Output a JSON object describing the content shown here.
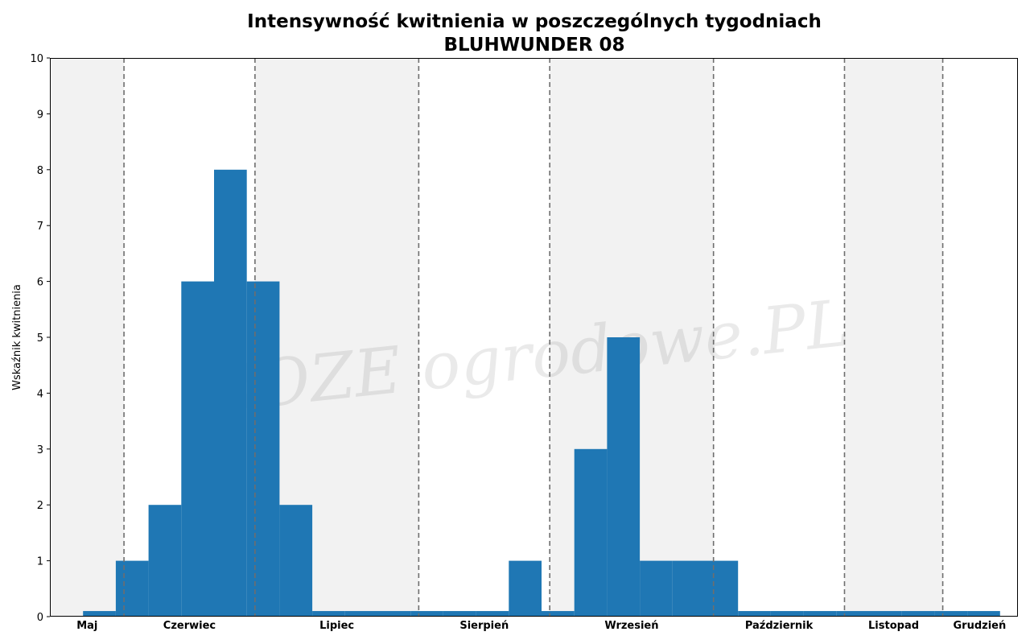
{
  "colors": {
    "bar": "#1f77b4",
    "band_shade": "#f2f2f2",
    "divider": "#6e6e6e",
    "axis": "#000000"
  },
  "chart_data": {
    "type": "bar",
    "title": "Intensywność kwitnienia w poszczególnych tygodniach",
    "subtitle": "BLUHWUNDER 08",
    "xlabel": "",
    "ylabel": "Wskaźnik kwitnienia",
    "ylim": [
      0,
      10
    ],
    "yticks": [
      "0",
      "1",
      "2",
      "3",
      "4",
      "5",
      "6",
      "7",
      "8",
      "9",
      "10"
    ],
    "grid": false,
    "months": [
      {
        "label": "Maj",
        "weeks": 2.25,
        "shaded": true
      },
      {
        "label": "Czerwiec",
        "weeks": 4,
        "shaded": false
      },
      {
        "label": "Lipiec",
        "weeks": 5,
        "shaded": true
      },
      {
        "label": "Sierpień",
        "weeks": 4,
        "shaded": false
      },
      {
        "label": "Wrzesień",
        "weeks": 5,
        "shaded": true
      },
      {
        "label": "Październik",
        "weeks": 4,
        "shaded": false
      },
      {
        "label": "Listopad",
        "weeks": 3,
        "shaded": true
      },
      {
        "label": "Grudzień",
        "weeks": 2.25,
        "shaded": false
      }
    ],
    "series": [
      {
        "values": [
          0,
          0.1,
          1,
          2,
          6,
          8,
          6,
          2,
          0.1,
          0.1,
          0.1,
          0.1,
          0.1,
          0.1,
          1,
          0.1,
          3,
          5,
          1,
          1,
          1,
          0.1,
          0.1,
          0.1,
          0.1,
          0.1,
          0.1,
          0.1,
          0.1
        ]
      }
    ],
    "watermark": "ROZE ogrodowe.PL"
  }
}
